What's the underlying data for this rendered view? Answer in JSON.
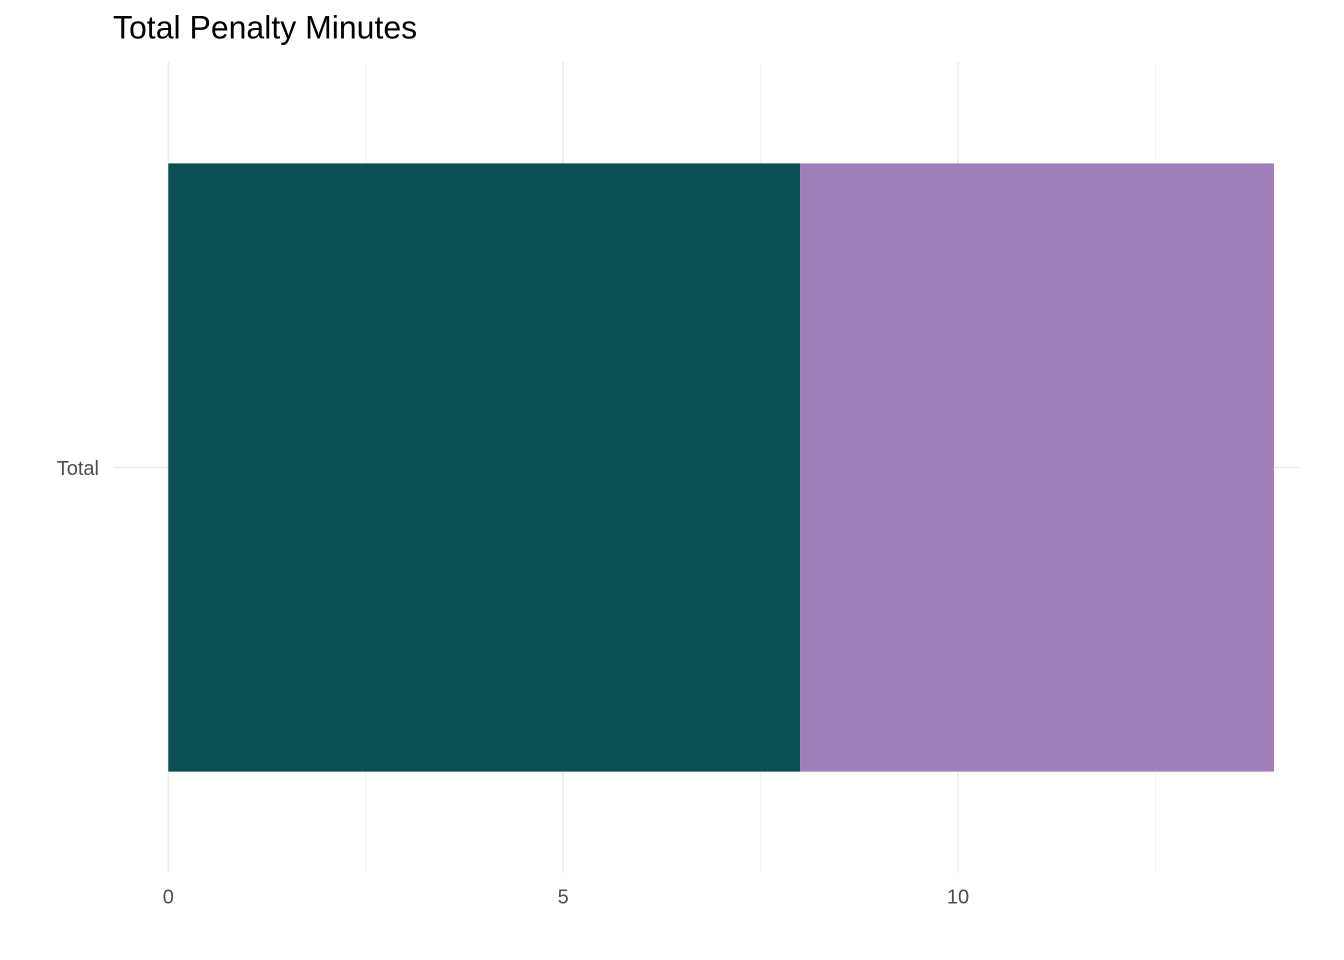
{
  "chart_data": {
    "type": "stacked-barh",
    "title": "Total Penalty Minutes",
    "categories": [
      "Total"
    ],
    "series": [
      {
        "color": "#0a5053",
        "values": [
          8
        ]
      },
      {
        "color": "#a07eb8",
        "values": [
          6
        ]
      }
    ],
    "xlim": [
      -0.7,
      14.33
    ],
    "xticks": [
      0,
      5,
      10
    ],
    "xminor": [
      2.5,
      7.5,
      12.5
    ],
    "grid": true
  }
}
